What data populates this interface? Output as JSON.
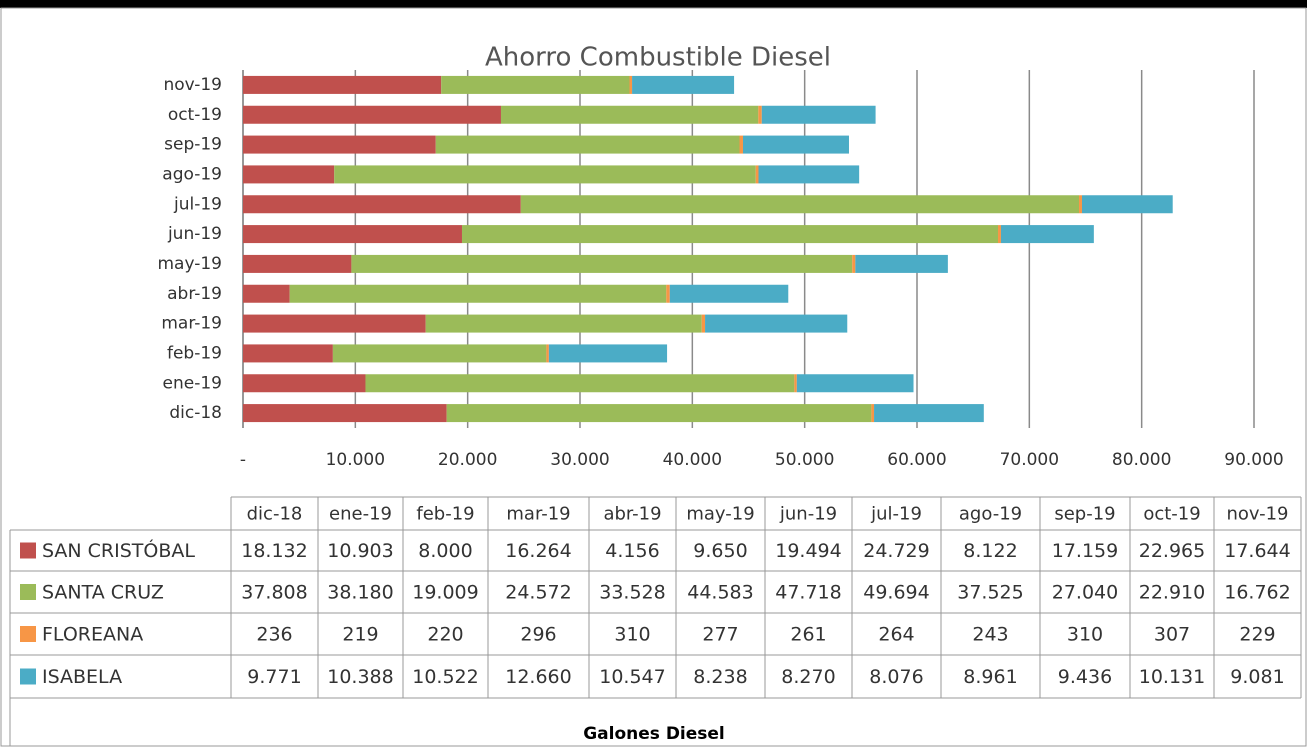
{
  "chart_data": {
    "type": "stacked_barh",
    "title": "Ahorro Combustible Diesel",
    "x_label": "Galones Diesel",
    "categories": [
      "dic-18",
      "ene-19",
      "feb-19",
      "mar-19",
      "abr-19",
      "may-19",
      "jun-19",
      "jul-19",
      "ago-19",
      "sep-19",
      "oct-19",
      "nov-19"
    ],
    "series": [
      {
        "name": "SAN CRISTÓBAL",
        "color": "#c0504d",
        "values": [
          18132,
          10903,
          8000,
          16264,
          4156,
          9650,
          19494,
          24729,
          8122,
          17159,
          22965,
          17644
        ],
        "value_labels": [
          "18.132",
          "10.903",
          "8.000",
          "16.264",
          "4.156",
          "9.650",
          "19.494",
          "24.729",
          "8.122",
          "17.159",
          "22.965",
          "17.644"
        ]
      },
      {
        "name": "SANTA CRUZ",
        "color": "#9bbb59",
        "values": [
          37808,
          38180,
          19009,
          24572,
          33528,
          44583,
          47718,
          49694,
          37525,
          27040,
          22910,
          16762
        ],
        "value_labels": [
          "37.808",
          "38.180",
          "19.009",
          "24.572",
          "33.528",
          "44.583",
          "47.718",
          "49.694",
          "37.525",
          "27.040",
          "22.910",
          "16.762"
        ]
      },
      {
        "name": "FLOREANA",
        "color": "#f79646",
        "values": [
          236,
          219,
          220,
          296,
          310,
          277,
          261,
          264,
          243,
          310,
          307,
          229
        ]
      },
      {
        "name": "ISABELA",
        "color": "#4bacc6",
        "values": [
          9771,
          10388,
          10522,
          12660,
          10547,
          8238,
          8270,
          8076,
          8961,
          9436,
          10131,
          9081
        ],
        "value_labels": [
          "9.771",
          "10.388",
          "10.522",
          "12.660",
          "10.547",
          "8.238",
          "8.270",
          "8.076",
          "8.961",
          "9.436",
          "10.131",
          "9.081"
        ]
      }
    ],
    "xlim": [
      0,
      90000
    ],
    "xticks": [
      {
        "value": 0,
        "label": "-"
      },
      {
        "value": 10000,
        "label": "10.000"
      },
      {
        "value": 20000,
        "label": "20.000"
      },
      {
        "value": 30000,
        "label": "30.000"
      },
      {
        "value": 40000,
        "label": "40.000"
      },
      {
        "value": 50000,
        "label": "50.000"
      },
      {
        "value": 60000,
        "label": "60.000"
      },
      {
        "value": 70000,
        "label": "70.000"
      },
      {
        "value": 80000,
        "label": "80.000"
      },
      {
        "value": 90000,
        "label": "90.000"
      }
    ],
    "grid": true
  }
}
